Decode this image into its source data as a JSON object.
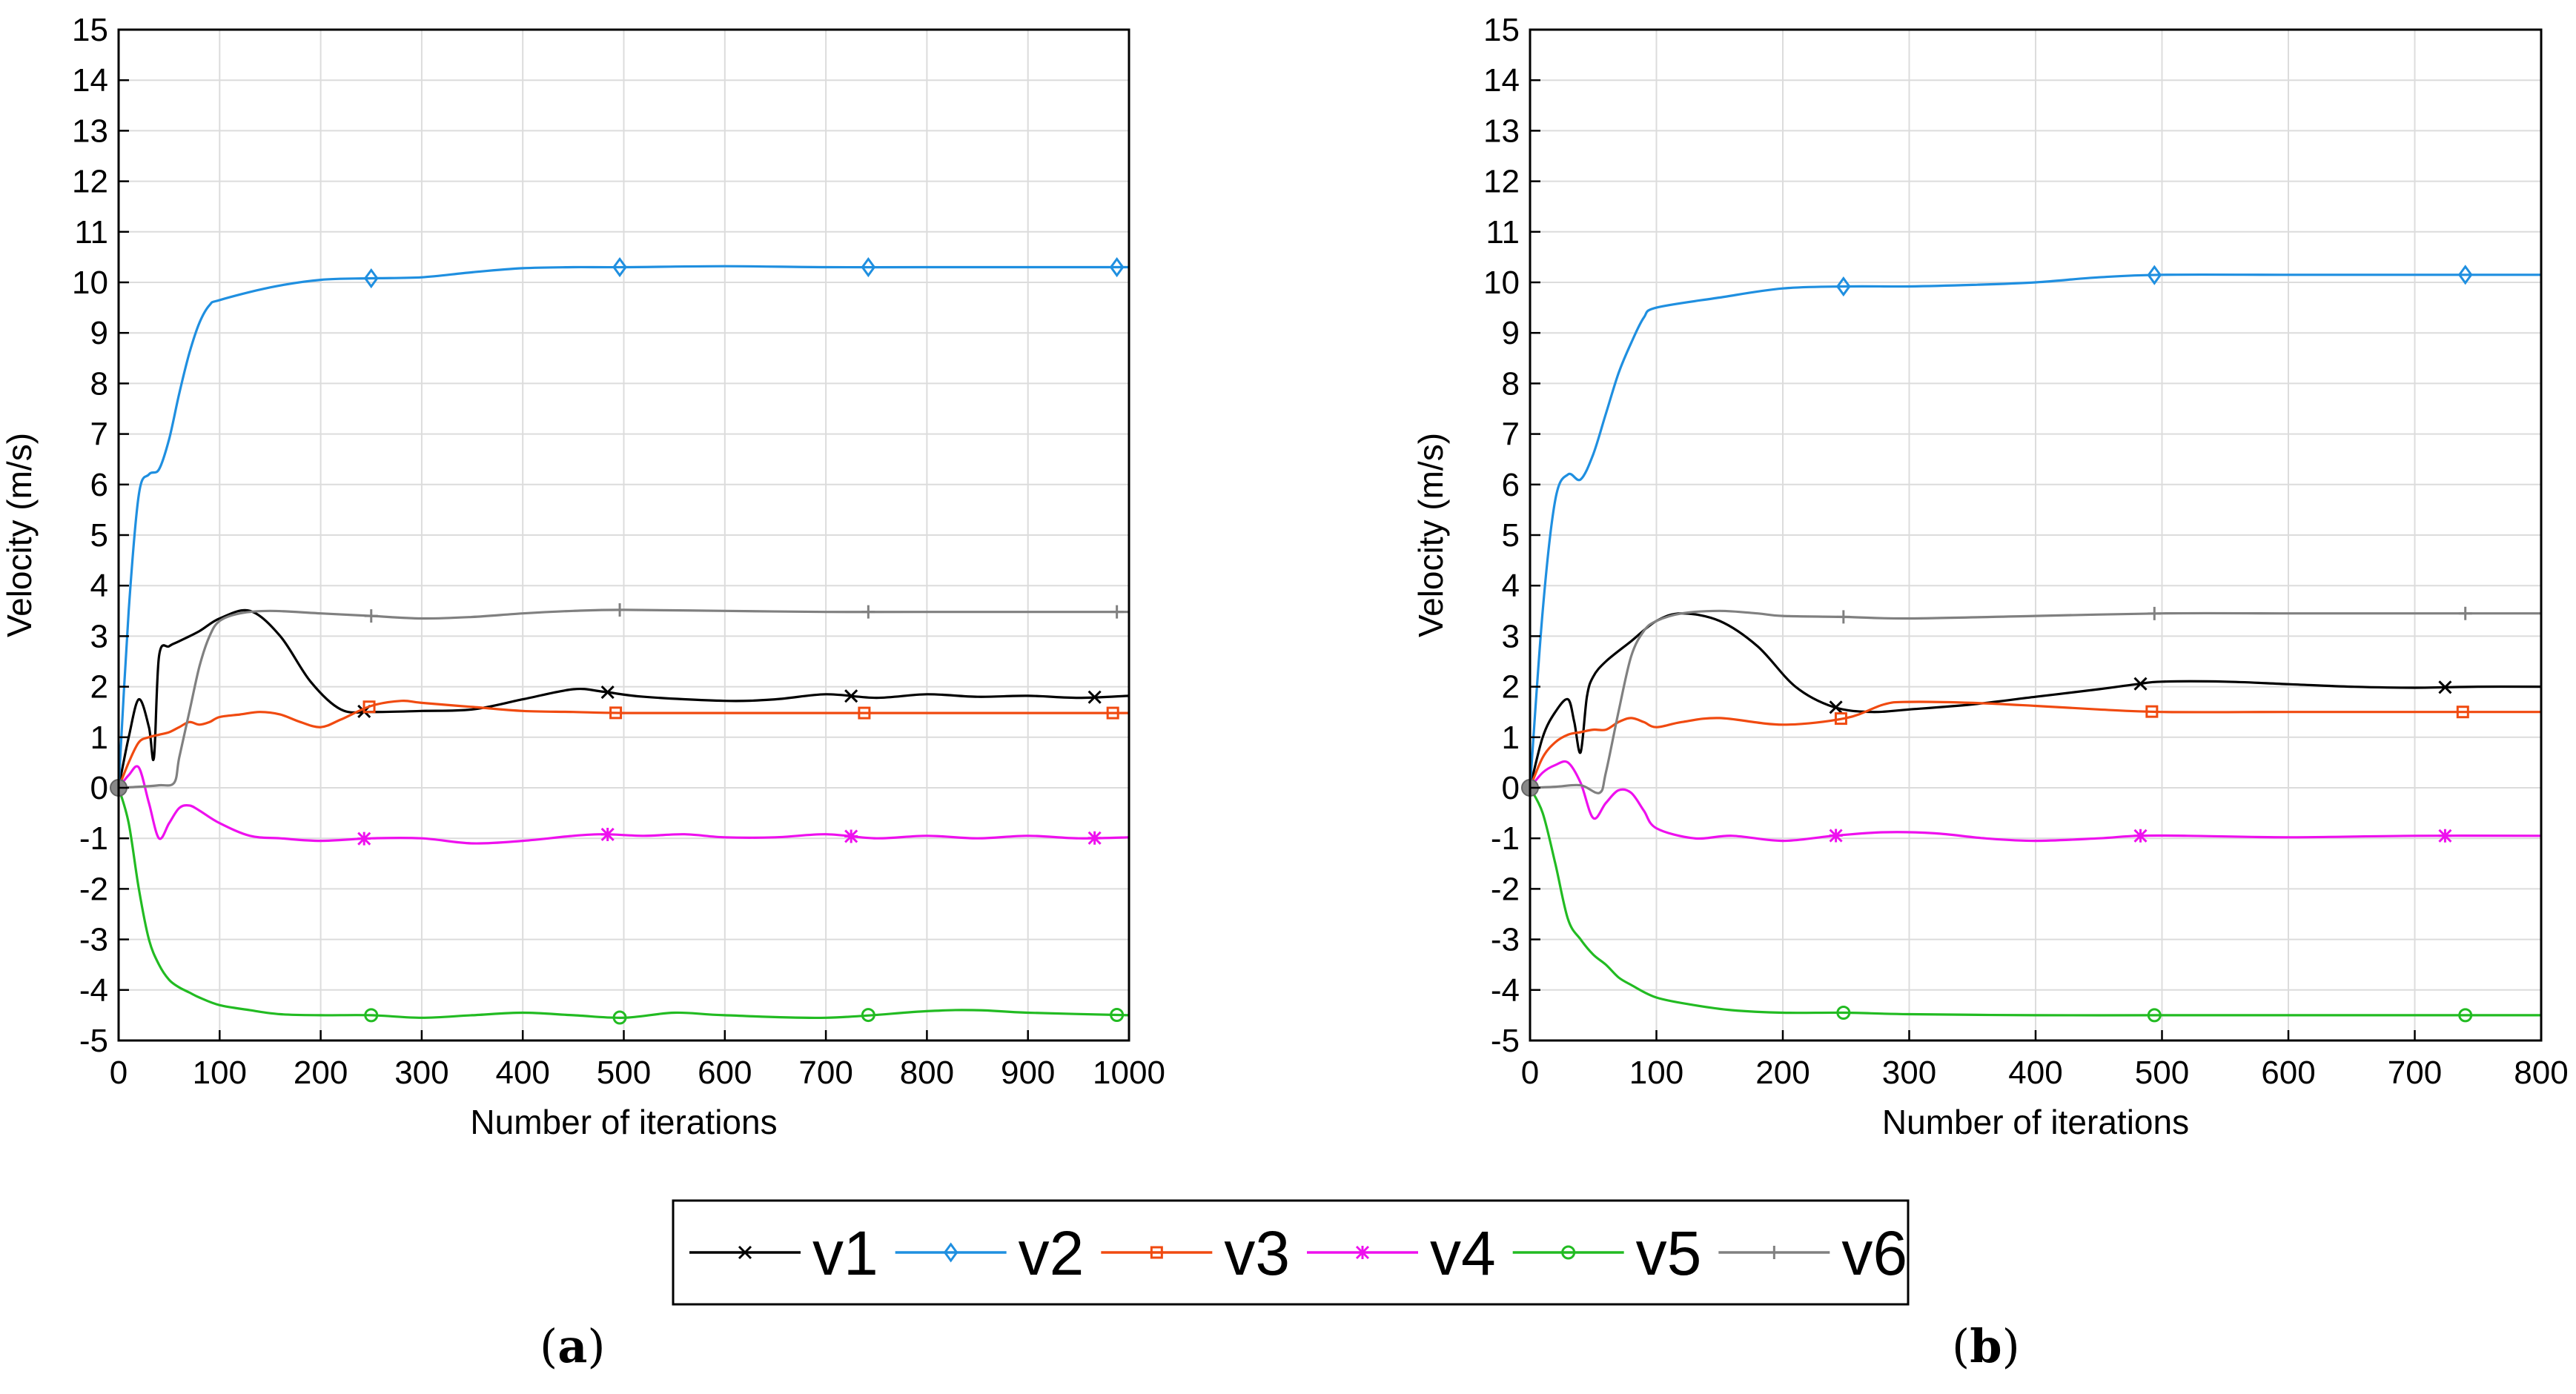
{
  "figure": {
    "panel_labels": [
      {
        "open": "(",
        "letter": "a",
        "close": ")"
      },
      {
        "open": "(",
        "letter": "b",
        "close": ")"
      }
    ],
    "legend": [
      {
        "name": "v1",
        "color": "#000000",
        "marker": "x"
      },
      {
        "name": "v2",
        "color": "#1f8fe0",
        "marker": "diamond"
      },
      {
        "name": "v3",
        "color": "#f04a10",
        "marker": "square"
      },
      {
        "name": "v4",
        "color": "#ee10ee",
        "marker": "asterisk"
      },
      {
        "name": "v5",
        "color": "#22bb22",
        "marker": "circle"
      },
      {
        "name": "v6",
        "color": "#808080",
        "marker": "plus"
      }
    ],
    "colors": {
      "grid": "#dcdcdc",
      "axis": "#000000",
      "background": "#ffffff"
    }
  },
  "chart_data": [
    {
      "type": "line",
      "panel": "a",
      "xlabel": "Number of iterations",
      "ylabel": "Velocity (m/s)",
      "xlim": [
        0,
        1000
      ],
      "ylim": [
        -5,
        15
      ],
      "xticks": [
        0,
        100,
        200,
        300,
        400,
        500,
        600,
        700,
        800,
        900,
        1000
      ],
      "yticks": [
        -5,
        -4,
        -3,
        -2,
        -1,
        0,
        1,
        2,
        3,
        4,
        5,
        6,
        7,
        8,
        9,
        10,
        11,
        12,
        13,
        14,
        15
      ],
      "grid": true,
      "series": [
        {
          "name": "v1",
          "x": [
            0,
            10,
            20,
            30,
            35,
            40,
            50,
            60,
            80,
            100,
            130,
            160,
            190,
            220,
            250,
            300,
            350,
            400,
            450,
            480,
            520,
            600,
            650,
            700,
            750,
            800,
            850,
            900,
            950,
            1000
          ],
          "y": [
            0,
            1.0,
            1.75,
            1.2,
            0.6,
            2.6,
            2.8,
            2.9,
            3.1,
            3.35,
            3.5,
            3.0,
            2.1,
            1.55,
            1.5,
            1.52,
            1.55,
            1.75,
            1.95,
            1.9,
            1.8,
            1.72,
            1.75,
            1.85,
            1.78,
            1.85,
            1.8,
            1.82,
            1.78,
            1.82
          ],
          "markers_x": [
            243,
            484,
            725,
            966
          ]
        },
        {
          "name": "v2",
          "x": [
            0,
            10,
            20,
            30,
            40,
            50,
            60,
            70,
            80,
            90,
            100,
            150,
            200,
            250,
            300,
            350,
            400,
            450,
            500,
            600,
            700,
            800,
            900,
            1000
          ],
          "y": [
            0,
            3.5,
            5.8,
            6.2,
            6.3,
            6.9,
            7.8,
            8.6,
            9.2,
            9.55,
            9.65,
            9.9,
            10.05,
            10.08,
            10.1,
            10.2,
            10.28,
            10.3,
            10.3,
            10.32,
            10.3,
            10.3,
            10.3,
            10.3
          ],
          "markers_x": [
            250,
            496,
            742,
            988
          ]
        },
        {
          "name": "v3",
          "x": [
            0,
            10,
            20,
            30,
            40,
            50,
            60,
            70,
            80,
            90,
            100,
            120,
            140,
            160,
            180,
            200,
            220,
            250,
            280,
            300,
            350,
            400,
            450,
            500,
            600,
            700,
            800,
            900,
            1000
          ],
          "y": [
            0,
            0.5,
            0.9,
            1.0,
            1.05,
            1.1,
            1.2,
            1.3,
            1.25,
            1.3,
            1.4,
            1.45,
            1.5,
            1.45,
            1.3,
            1.2,
            1.35,
            1.62,
            1.72,
            1.68,
            1.6,
            1.52,
            1.5,
            1.48,
            1.48,
            1.48,
            1.48,
            1.48,
            1.48
          ],
          "markers_x": [
            248,
            492,
            738,
            984
          ]
        },
        {
          "name": "v4",
          "x": [
            0,
            10,
            20,
            30,
            40,
            50,
            60,
            70,
            80,
            100,
            130,
            160,
            200,
            250,
            300,
            350,
            400,
            450,
            480,
            520,
            560,
            600,
            650,
            700,
            750,
            800,
            850,
            900,
            950,
            1000
          ],
          "y": [
            0,
            0.25,
            0.4,
            -0.3,
            -1.0,
            -0.7,
            -0.4,
            -0.35,
            -0.45,
            -0.7,
            -0.95,
            -1.0,
            -1.05,
            -1.0,
            -1.0,
            -1.1,
            -1.05,
            -0.95,
            -0.92,
            -0.95,
            -0.92,
            -0.98,
            -0.98,
            -0.92,
            -1.0,
            -0.95,
            -1.0,
            -0.95,
            -1.0,
            -0.98
          ],
          "markers_x": [
            243,
            484,
            725,
            966
          ]
        },
        {
          "name": "v5",
          "x": [
            0,
            10,
            20,
            30,
            40,
            50,
            60,
            70,
            80,
            100,
            130,
            160,
            200,
            250,
            300,
            350,
            400,
            450,
            500,
            550,
            600,
            700,
            800,
            850,
            900,
            1000
          ],
          "y": [
            0,
            -0.7,
            -2.0,
            -3.0,
            -3.5,
            -3.8,
            -3.95,
            -4.05,
            -4.15,
            -4.3,
            -4.4,
            -4.48,
            -4.5,
            -4.5,
            -4.55,
            -4.5,
            -4.45,
            -4.5,
            -4.55,
            -4.45,
            -4.5,
            -4.55,
            -4.42,
            -4.4,
            -4.45,
            -4.5
          ],
          "markers_x": [
            250,
            496,
            742,
            988
          ]
        },
        {
          "name": "v6",
          "x": [
            0,
            20,
            40,
            55,
            60,
            70,
            80,
            90,
            100,
            120,
            150,
            200,
            250,
            300,
            350,
            400,
            450,
            500,
            600,
            700,
            800,
            900,
            1000
          ],
          "y": [
            0,
            0.02,
            0.05,
            0.1,
            0.6,
            1.5,
            2.4,
            3.0,
            3.3,
            3.45,
            3.5,
            3.45,
            3.4,
            3.35,
            3.38,
            3.45,
            3.5,
            3.52,
            3.5,
            3.48,
            3.48,
            3.48,
            3.48
          ],
          "markers_x": [
            250,
            496,
            742,
            988
          ]
        }
      ]
    },
    {
      "type": "line",
      "panel": "b",
      "xlabel": "Number of iterations",
      "ylabel": "Velocity (m/s)",
      "xlim": [
        0,
        800
      ],
      "ylim": [
        -5,
        15
      ],
      "xticks": [
        0,
        100,
        200,
        300,
        400,
        500,
        600,
        700,
        800
      ],
      "yticks": [
        -5,
        -4,
        -3,
        -2,
        -1,
        0,
        1,
        2,
        3,
        4,
        5,
        6,
        7,
        8,
        9,
        10,
        11,
        12,
        13,
        14,
        15
      ],
      "grid": true,
      "series": [
        {
          "name": "v1",
          "x": [
            0,
            10,
            20,
            30,
            35,
            40,
            45,
            50,
            60,
            80,
            100,
            120,
            150,
            180,
            210,
            240,
            270,
            300,
            350,
            400,
            450,
            480,
            500,
            550,
            600,
            650,
            700,
            750,
            800
          ],
          "y": [
            0,
            1.0,
            1.5,
            1.75,
            1.3,
            0.7,
            1.8,
            2.2,
            2.5,
            2.9,
            3.3,
            3.45,
            3.3,
            2.8,
            2.0,
            1.6,
            1.5,
            1.55,
            1.65,
            1.8,
            1.95,
            2.05,
            2.1,
            2.1,
            2.05,
            2.0,
            1.98,
            2.0,
            2.0
          ],
          "markers_x": [
            242,
            483,
            724
          ]
        },
        {
          "name": "v2",
          "x": [
            0,
            10,
            20,
            30,
            40,
            50,
            60,
            70,
            80,
            90,
            100,
            150,
            200,
            250,
            300,
            350,
            400,
            450,
            500,
            600,
            700,
            800
          ],
          "y": [
            0,
            3.5,
            5.7,
            6.2,
            6.1,
            6.6,
            7.4,
            8.2,
            8.8,
            9.3,
            9.5,
            9.7,
            9.88,
            9.92,
            9.92,
            9.95,
            10.0,
            10.1,
            10.15,
            10.15,
            10.15,
            10.15
          ],
          "markers_x": [
            248,
            494,
            740
          ]
        },
        {
          "name": "v3",
          "x": [
            0,
            10,
            20,
            30,
            40,
            50,
            60,
            70,
            80,
            90,
            100,
            120,
            150,
            200,
            250,
            280,
            300,
            350,
            400,
            450,
            500,
            600,
            700,
            800
          ],
          "y": [
            0,
            0.6,
            0.9,
            1.05,
            1.1,
            1.15,
            1.15,
            1.3,
            1.38,
            1.3,
            1.2,
            1.3,
            1.38,
            1.25,
            1.38,
            1.65,
            1.7,
            1.68,
            1.62,
            1.55,
            1.5,
            1.5,
            1.5,
            1.5
          ],
          "markers_x": [
            246,
            492,
            738
          ]
        },
        {
          "name": "v4",
          "x": [
            0,
            10,
            20,
            30,
            40,
            50,
            60,
            70,
            80,
            90,
            100,
            130,
            160,
            200,
            240,
            280,
            320,
            360,
            400,
            450,
            480,
            520,
            600,
            700,
            800
          ],
          "y": [
            0,
            0.3,
            0.45,
            0.5,
            0.1,
            -0.6,
            -0.3,
            -0.05,
            -0.1,
            -0.45,
            -0.8,
            -1.0,
            -0.95,
            -1.05,
            -0.95,
            -0.88,
            -0.9,
            -1.0,
            -1.05,
            -1.0,
            -0.95,
            -0.95,
            -0.98,
            -0.95,
            -0.95
          ],
          "markers_x": [
            242,
            483,
            724
          ]
        },
        {
          "name": "v5",
          "x": [
            0,
            10,
            20,
            30,
            40,
            50,
            60,
            70,
            80,
            100,
            130,
            160,
            200,
            250,
            300,
            400,
            500,
            600,
            700,
            800
          ],
          "y": [
            0,
            -0.5,
            -1.5,
            -2.6,
            -3.0,
            -3.3,
            -3.5,
            -3.75,
            -3.9,
            -4.15,
            -4.3,
            -4.4,
            -4.45,
            -4.45,
            -4.48,
            -4.5,
            -4.5,
            -4.5,
            -4.5,
            -4.5
          ],
          "markers_x": [
            248,
            494,
            740
          ]
        },
        {
          "name": "v6",
          "x": [
            0,
            20,
            40,
            55,
            60,
            70,
            80,
            90,
            100,
            120,
            150,
            180,
            200,
            250,
            300,
            400,
            500,
            600,
            700,
            800
          ],
          "y": [
            0,
            0.02,
            0.05,
            -0.1,
            0.3,
            1.5,
            2.6,
            3.1,
            3.3,
            3.45,
            3.5,
            3.45,
            3.4,
            3.38,
            3.35,
            3.4,
            3.45,
            3.45,
            3.45,
            3.45
          ],
          "markers_x": [
            248,
            494,
            740
          ]
        }
      ]
    }
  ]
}
